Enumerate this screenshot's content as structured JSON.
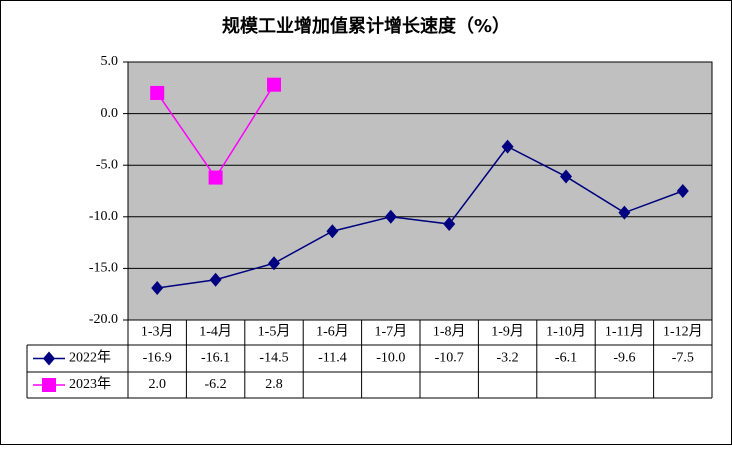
{
  "chart_data": {
    "type": "line",
    "title": "规模工业增加值累计增长速度（%）",
    "categories": [
      "1-3月",
      "1-4月",
      "1-5月",
      "1-6月",
      "1-7月",
      "1-8月",
      "1-9月",
      "1-10月",
      "1-11月",
      "1-12月"
    ],
    "series": [
      {
        "name": "2022年",
        "color": "#000080",
        "marker": "diamond",
        "values": [
          -16.9,
          -16.1,
          -14.5,
          -11.4,
          -10.0,
          -10.7,
          -3.2,
          -6.1,
          -9.6,
          -7.5
        ],
        "value_labels": [
          "-16.9",
          "-16.1",
          "-14.5",
          "-11.4",
          "-10.0",
          "-10.7",
          "-3.2",
          "-6.1",
          "-9.6",
          "-7.5"
        ]
      },
      {
        "name": "2023年",
        "color": "#ff00ff",
        "marker": "square",
        "values": [
          2.0,
          -6.2,
          2.8,
          null,
          null,
          null,
          null,
          null,
          null,
          null
        ],
        "value_labels": [
          "2.0",
          "-6.2",
          "2.8",
          null,
          null,
          null,
          null,
          null,
          null,
          null
        ]
      }
    ],
    "ylim": [
      -20,
      5
    ],
    "yticks": [
      {
        "value": 5,
        "label": "5.0"
      },
      {
        "value": 0,
        "label": "0.0"
      },
      {
        "value": -5,
        "label": "-5.0"
      },
      {
        "value": -10,
        "label": "-10.0"
      },
      {
        "value": -15,
        "label": "-15.0"
      },
      {
        "value": -20,
        "label": "-20.0"
      }
    ],
    "grid": true,
    "data_table": true
  }
}
